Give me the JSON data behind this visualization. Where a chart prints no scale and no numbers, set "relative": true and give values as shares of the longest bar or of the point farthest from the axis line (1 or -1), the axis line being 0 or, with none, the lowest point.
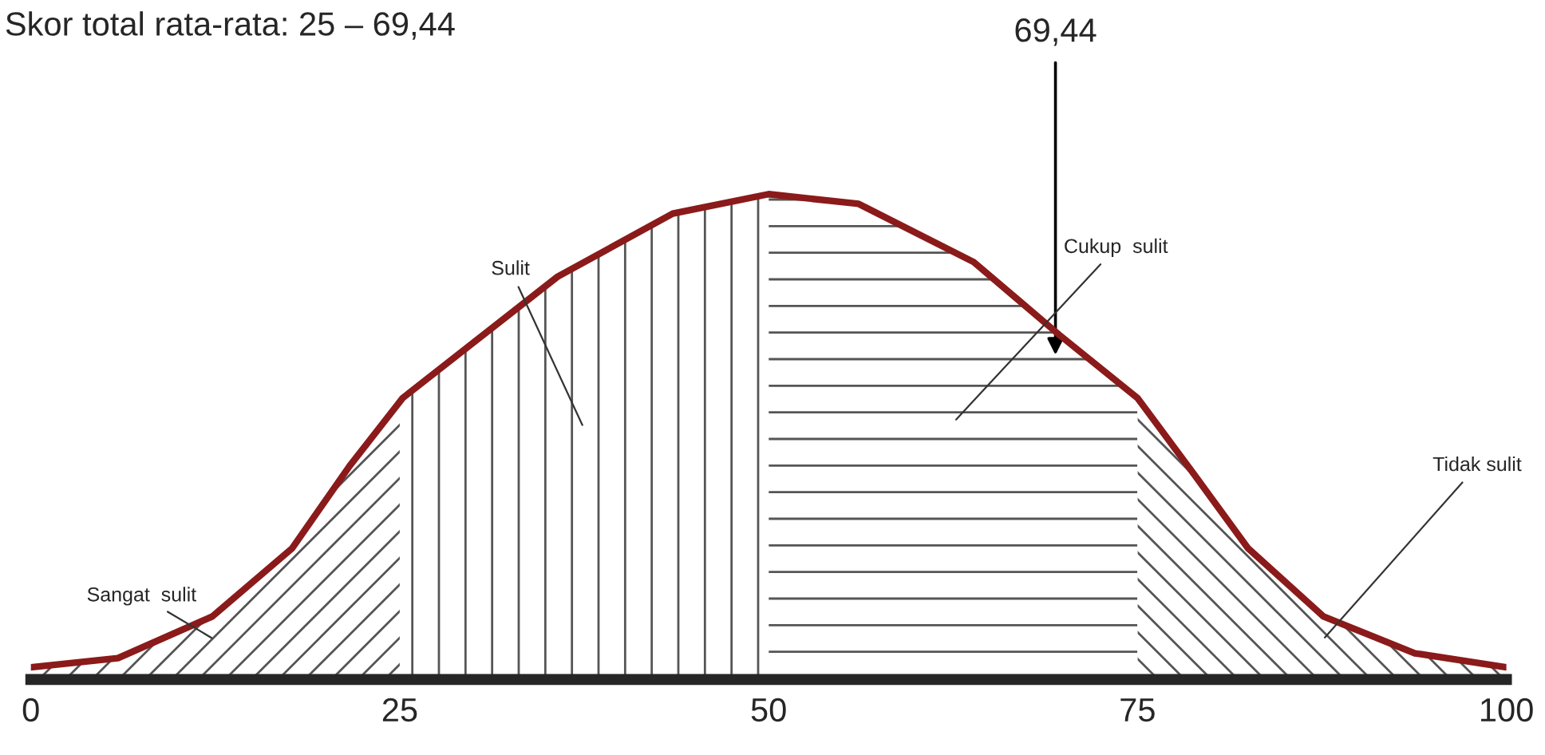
{
  "chart_data": {
    "type": "line",
    "title": "Skor total rata-rata: 25 – 69,44",
    "relative": true,
    "x": [
      0,
      5.9,
      12.3,
      17.7,
      21.6,
      25.2,
      35.7,
      43.5,
      50,
      56.1,
      63.9,
      69.7,
      75,
      78.9,
      82.5,
      87.6,
      93.8,
      100
    ],
    "series": [
      {
        "color": "#8b1a1a",
        "values": [
          0.025,
          0.044,
          0.13,
          0.27,
          0.44,
          0.58,
          0.83,
          0.96,
          1.0,
          0.98,
          0.86,
          0.71,
          0.58,
          0.42,
          0.27,
          0.13,
          0.054,
          0.025
        ]
      }
    ],
    "xlim": [
      0,
      100
    ],
    "xticks": [
      0,
      25,
      50,
      75,
      100
    ],
    "bands": [
      {
        "axis": "x",
        "from": 0,
        "to": 25,
        "label": "Sangat  sulit"
      },
      {
        "axis": "x",
        "from": 25,
        "to": 50,
        "label": "Sulit"
      },
      {
        "axis": "x",
        "from": 50,
        "to": 75,
        "label": "Cukup  sulit"
      },
      {
        "axis": "x",
        "from": 75,
        "to": 100,
        "label": "Tidak sulit"
      }
    ],
    "annotations": [
      {
        "text": "69,44",
        "x": 69.44
      }
    ],
    "grid": false,
    "legend": false
  }
}
